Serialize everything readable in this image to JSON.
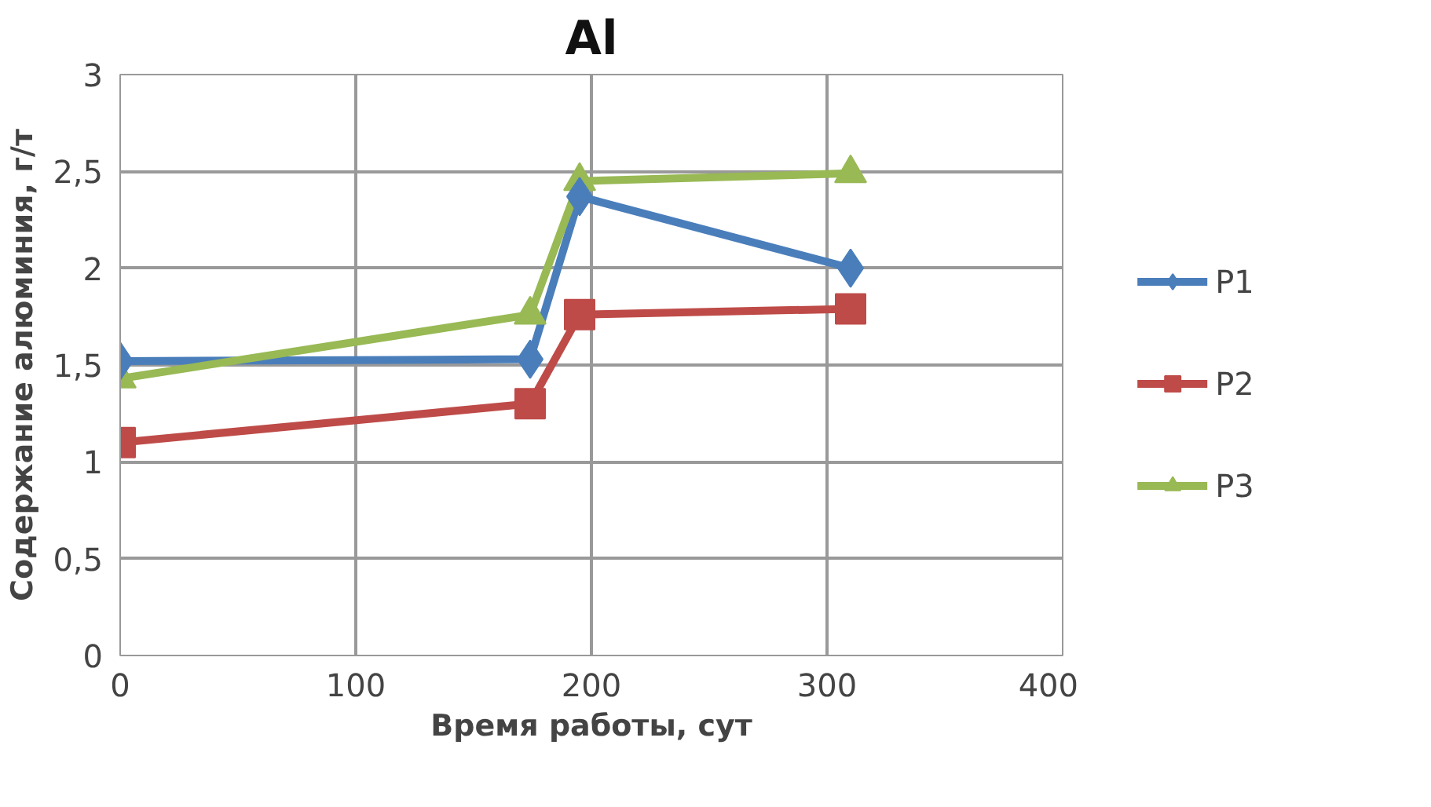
{
  "chart_data": {
    "type": "line",
    "title": "Al",
    "xlabel": "Время работы, сут",
    "ylabel": "Содержание алюминия, г/т",
    "xlim": [
      0,
      400
    ],
    "xticks": [
      0,
      100,
      200,
      300,
      400
    ],
    "ylim": [
      0,
      3
    ],
    "yticks": [
      0,
      {
        "value": 0.5,
        "label": "0,5"
      },
      1,
      {
        "value": 1.5,
        "label": "1,5"
      },
      2,
      {
        "value": 2.5,
        "label": "2,5"
      },
      3
    ],
    "grid": true,
    "legend": "right",
    "x": [
      0,
      174,
      195,
      310
    ],
    "series": [
      {
        "name": "P1",
        "color": "#4a7ebb",
        "marker": "diamond",
        "values": [
          1.52,
          1.53,
          2.37,
          2.0
        ]
      },
      {
        "name": "P2",
        "color": "#be4b48",
        "marker": "square",
        "values": [
          1.1,
          1.3,
          1.76,
          1.79
        ]
      },
      {
        "name": "P3",
        "color": "#98b954",
        "marker": "triangle",
        "values": [
          1.43,
          1.76,
          2.45,
          2.49
        ]
      }
    ]
  }
}
